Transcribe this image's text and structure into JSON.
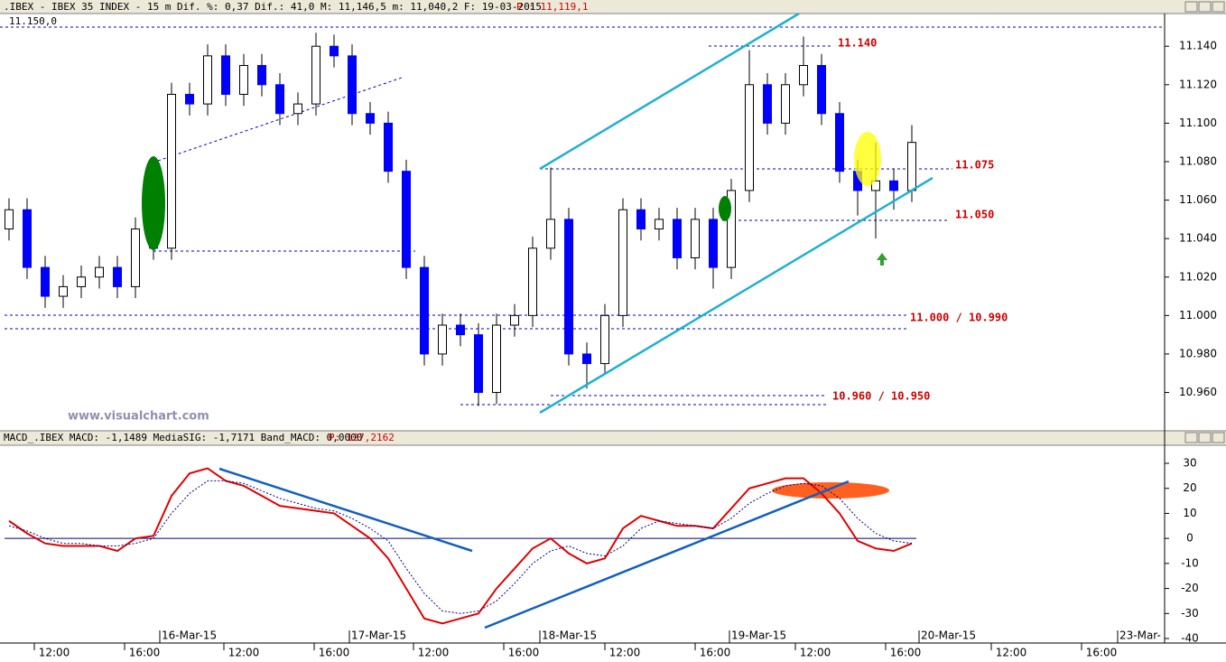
{
  "header": {
    "title": ".IBEX - IBEX 35 INDEX -  15 m Dif. %: 0,37 Dif.: 41,0 M: 11,146,5 m: 11,040,2 F: 19-03-2015",
    "price": "P : 11,119,1"
  },
  "chart_data": [
    {
      "type": "candlestick",
      "corner_label": "11.150,0",
      "watermark": "www.visualchart.com",
      "categories": [
        null,
        null,
        null,
        null,
        null,
        null,
        null,
        null,
        null,
        null,
        null,
        null,
        null,
        null,
        null,
        null,
        null,
        null,
        null,
        null,
        null,
        null,
        null,
        null,
        null,
        null,
        null,
        null,
        null,
        null,
        null,
        null,
        null,
        null,
        null,
        null,
        null,
        null,
        null,
        null,
        null,
        null,
        null,
        null,
        null,
        null,
        null,
        null,
        null,
        null,
        null
      ],
      "open": [
        11.045,
        11.055,
        11.025,
        11.01,
        11.015,
        11.02,
        11.025,
        11.015,
        11.045,
        11.035,
        11.115,
        11.11,
        11.135,
        11.115,
        11.13,
        11.12,
        11.105,
        11.11,
        11.14,
        11.135,
        11.105,
        11.1,
        11.075,
        11.025,
        10.98,
        10.995,
        10.99,
        10.96,
        10.995,
        11.0,
        11.035,
        11.05,
        10.98,
        10.975,
        11.0,
        11.055,
        11.045,
        11.05,
        11.03,
        11.05,
        11.025,
        11.065,
        11.12,
        11.1,
        11.12,
        11.13,
        11.105,
        11.075,
        11.065,
        11.07,
        11.065
      ],
      "high": [
        11.061,
        11.061,
        11.031,
        11.021,
        11.026,
        11.031,
        11.031,
        11.051,
        11.051,
        11.121,
        11.121,
        11.141,
        11.141,
        11.136,
        11.136,
        11.126,
        11.116,
        11.147,
        11.146,
        11.141,
        11.111,
        11.106,
        11.081,
        11.031,
        11.001,
        11.001,
        10.996,
        11.001,
        11.006,
        11.041,
        11.077,
        11.056,
        10.986,
        11.006,
        11.061,
        11.061,
        11.056,
        11.056,
        11.056,
        11.056,
        11.071,
        11.138,
        11.126,
        11.126,
        11.145,
        11.136,
        11.111,
        11.081,
        11.09,
        11.076,
        11.099
      ],
      "low": [
        11.039,
        11.019,
        11.004,
        11.004,
        11.009,
        11.014,
        11.009,
        11.009,
        11.029,
        11.029,
        11.104,
        11.104,
        11.109,
        11.109,
        11.114,
        11.099,
        11.099,
        11.104,
        11.129,
        11.099,
        11.094,
        11.069,
        11.019,
        10.974,
        10.974,
        10.984,
        10.953,
        10.954,
        10.989,
        10.994,
        11.029,
        10.974,
        10.962,
        10.969,
        10.994,
        11.039,
        11.039,
        11.024,
        11.024,
        11.014,
        11.019,
        11.059,
        11.094,
        11.094,
        11.114,
        11.099,
        11.069,
        11.052,
        11.04,
        11.055,
        11.059
      ],
      "close": [
        11.055,
        11.025,
        11.01,
        11.015,
        11.02,
        11.025,
        11.015,
        11.045,
        11.035,
        11.115,
        11.11,
        11.135,
        11.115,
        11.13,
        11.12,
        11.105,
        11.11,
        11.14,
        11.135,
        11.105,
        11.1,
        11.075,
        11.025,
        10.98,
        10.995,
        10.99,
        10.96,
        10.995,
        11.0,
        11.035,
        11.05,
        10.98,
        10.975,
        11.0,
        11.055,
        11.045,
        11.05,
        11.03,
        11.05,
        11.025,
        11.065,
        11.12,
        11.1,
        11.12,
        11.13,
        11.105,
        11.075,
        11.065,
        11.07,
        11.065,
        11.09
      ],
      "colors": {
        "up": "#ffffff",
        "down": "#0000ff",
        "outline": "#000000"
      },
      "ylim": [
        10.941,
        11.157
      ],
      "yticks": [
        {
          "value": 10.96,
          "label": "10.960"
        },
        {
          "value": 10.98,
          "label": "10.980"
        },
        {
          "value": 11.0,
          "label": "11.000"
        },
        {
          "value": 11.02,
          "label": "11.020"
        },
        {
          "value": 11.04,
          "label": "11.040"
        },
        {
          "value": 11.06,
          "label": "11.060"
        },
        {
          "value": 11.08,
          "label": "11.080"
        },
        {
          "value": 11.1,
          "label": "11.100"
        },
        {
          "value": 11.12,
          "label": "11.120"
        },
        {
          "value": 11.14,
          "label": "11.140"
        }
      ],
      "annotations": [
        "11.140",
        "11.075",
        "11.050",
        "11.000 / 10.990",
        "10.960 / 10.950"
      ]
    },
    {
      "type": "line",
      "title": "MACD_.IBEX MACD: -1,1489 MediaSIG: -1,7171 Band_MACD: 0,0000",
      "price": "P: 127,2162",
      "categories": [
        null,
        null,
        null,
        null,
        null,
        null,
        null,
        null,
        null,
        null,
        null,
        null,
        null,
        null,
        null,
        null,
        null,
        null,
        null,
        null,
        null,
        null,
        null,
        null,
        null,
        null,
        null,
        null,
        null,
        null,
        null,
        null,
        null,
        null,
        null,
        null,
        null,
        null,
        null,
        null,
        null,
        null,
        null,
        null,
        null,
        null,
        null,
        null,
        null,
        null,
        null
      ],
      "series": [
        {
          "color": "#e00000",
          "values": [
            7,
            2,
            -2,
            -3,
            -3,
            -3,
            -5,
            0,
            1,
            17,
            26,
            28,
            23,
            21,
            17,
            13,
            12,
            11,
            10,
            5,
            0,
            -8,
            -20,
            -32,
            -34,
            -32,
            -30,
            -20,
            -12,
            -4,
            0,
            -6,
            -10,
            -8,
            4,
            9,
            7,
            5,
            5,
            4,
            12,
            20,
            22,
            24,
            24,
            18,
            10,
            -1,
            -4,
            -5,
            -2
          ]
        },
        {
          "color": "#000080",
          "values": [
            5,
            3,
            0,
            -2,
            -2,
            -3,
            -3,
            -2,
            0,
            10,
            18,
            23,
            23,
            22,
            19,
            16,
            14,
            12,
            11,
            8,
            4,
            -1,
            -12,
            -22,
            -29,
            -30,
            -29,
            -25,
            -18,
            -10,
            -5,
            -3,
            -6,
            -7,
            -3,
            4,
            7,
            6,
            5,
            4,
            8,
            14,
            18,
            21,
            22,
            21,
            16,
            8,
            2,
            -1,
            -2
          ]
        }
      ],
      "ylim": [
        -41.8,
        36.5
      ],
      "yticks": [
        30,
        20,
        10,
        0,
        -10,
        -20,
        -30,
        -40
      ]
    }
  ],
  "time_labels": [
    "12:00",
    "16:00",
    "12:00",
    "16:00",
    "12:00",
    "16:00",
    "12:00",
    "16:00",
    "12:00",
    "16:00",
    "12:00",
    "16:00"
  ],
  "date_labels": [
    "16-Mar-15",
    "17-Mar-15",
    "18-Mar-15",
    "19-Mar-15",
    "20-Mar-15",
    "23-Mar-"
  ]
}
